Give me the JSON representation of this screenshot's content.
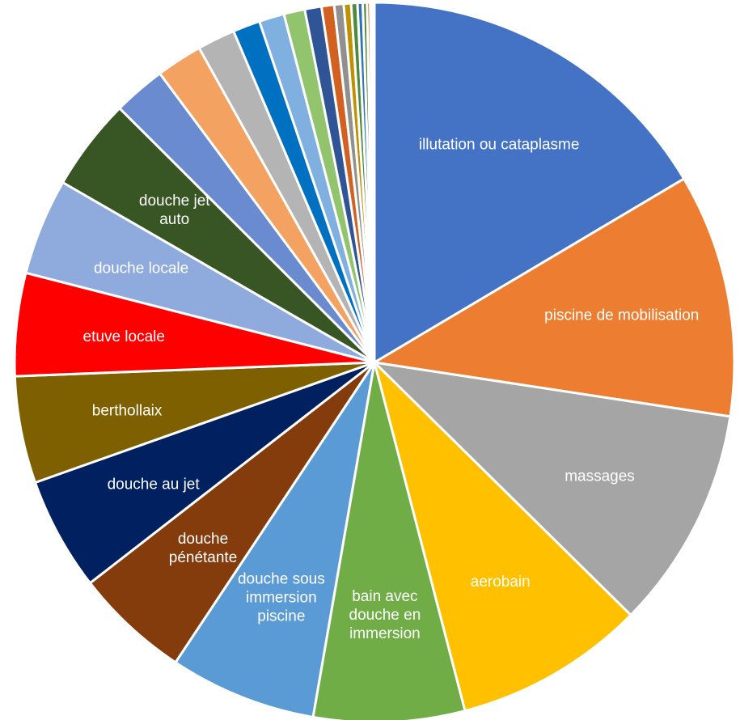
{
  "chart_data": {
    "type": "pie",
    "start": "12 o'clock, clockwise",
    "slices": [
      {
        "label": "illutation ou cataplasme",
        "value": 17.5,
        "color": "#4472C4"
      },
      {
        "label": "piscine de mobilisation",
        "value": 11.6,
        "color": "#ED7D31"
      },
      {
        "label": "massages",
        "value": 10.6,
        "color": "#A5A5A5"
      },
      {
        "label": "aerobain",
        "value": 9.1,
        "color": "#FFC000"
      },
      {
        "label": "bain avec douche en immersion",
        "value": 7.2,
        "color": "#70AD47"
      },
      {
        "label": "douche sous immersion piscine",
        "value": 7.0,
        "color": "#5B9BD5"
      },
      {
        "label": "douche pénétante",
        "value": 5.5,
        "color": "#843C0C"
      },
      {
        "label": "douche au jet",
        "value": 5.4,
        "color": "#002060"
      },
      {
        "label": "berthollaix",
        "value": 5.1,
        "color": "#7F6000"
      },
      {
        "label": "etuve locale",
        "value": 4.9,
        "color": "#FF0000"
      },
      {
        "label": "douche locale",
        "value": 4.6,
        "color": "#8FAADC"
      },
      {
        "label": "douche jet auto",
        "value": 4.4,
        "color": "#375623"
      },
      {
        "label": "",
        "value": 2.5,
        "color": "#6A8BCF"
      },
      {
        "label": "",
        "value": 2.2,
        "color": "#F4A261"
      },
      {
        "label": "",
        "value": 1.8,
        "color": "#B4B4B4"
      },
      {
        "label": "",
        "value": 1.3,
        "color": "#0070C0"
      },
      {
        "label": "",
        "value": 1.2,
        "color": "#7FB0E0"
      },
      {
        "label": "",
        "value": 1.0,
        "color": "#92C46E"
      },
      {
        "label": "",
        "value": 0.8,
        "color": "#2F5597"
      },
      {
        "label": "",
        "value": 0.6,
        "color": "#D26020"
      },
      {
        "label": "",
        "value": 0.45,
        "color": "#909090"
      },
      {
        "label": "",
        "value": 0.35,
        "color": "#BF9000"
      },
      {
        "label": "",
        "value": 0.3,
        "color": "#4E8A3C"
      },
      {
        "label": "",
        "value": 0.25,
        "color": "#2E75B6"
      },
      {
        "label": "",
        "value": 0.2,
        "color": "#548235"
      },
      {
        "label": "",
        "value": 0.15,
        "color": "#C55A11"
      },
      {
        "label": "",
        "value": 0.1,
        "color": "#BDD7EE"
      },
      {
        "label": "",
        "value": 0.1,
        "color": "#F8CBAD"
      }
    ],
    "label_lines": {
      "illutation ou cataplasme": [
        "illutation ou cataplasme"
      ],
      "piscine de mobilisation": [
        "piscine de mobilisation"
      ],
      "massages": [
        "massages"
      ],
      "aerobain": [
        "aerobain"
      ],
      "bain avec douche en immersion": [
        "bain avec",
        "douche en",
        "immersion"
      ],
      "douche sous immersion piscine": [
        "douche sous",
        "immersion",
        "piscine"
      ],
      "douche pénétante": [
        "douche",
        "pénétante"
      ],
      "douche au jet": [
        "douche au jet"
      ],
      "berthollaix": [
        "berthollaix"
      ],
      "etuve locale": [
        "etuve locale"
      ],
      "douche locale": [
        "douche locale"
      ],
      "douche jet auto": [
        "douche jet",
        "auto"
      ]
    }
  }
}
